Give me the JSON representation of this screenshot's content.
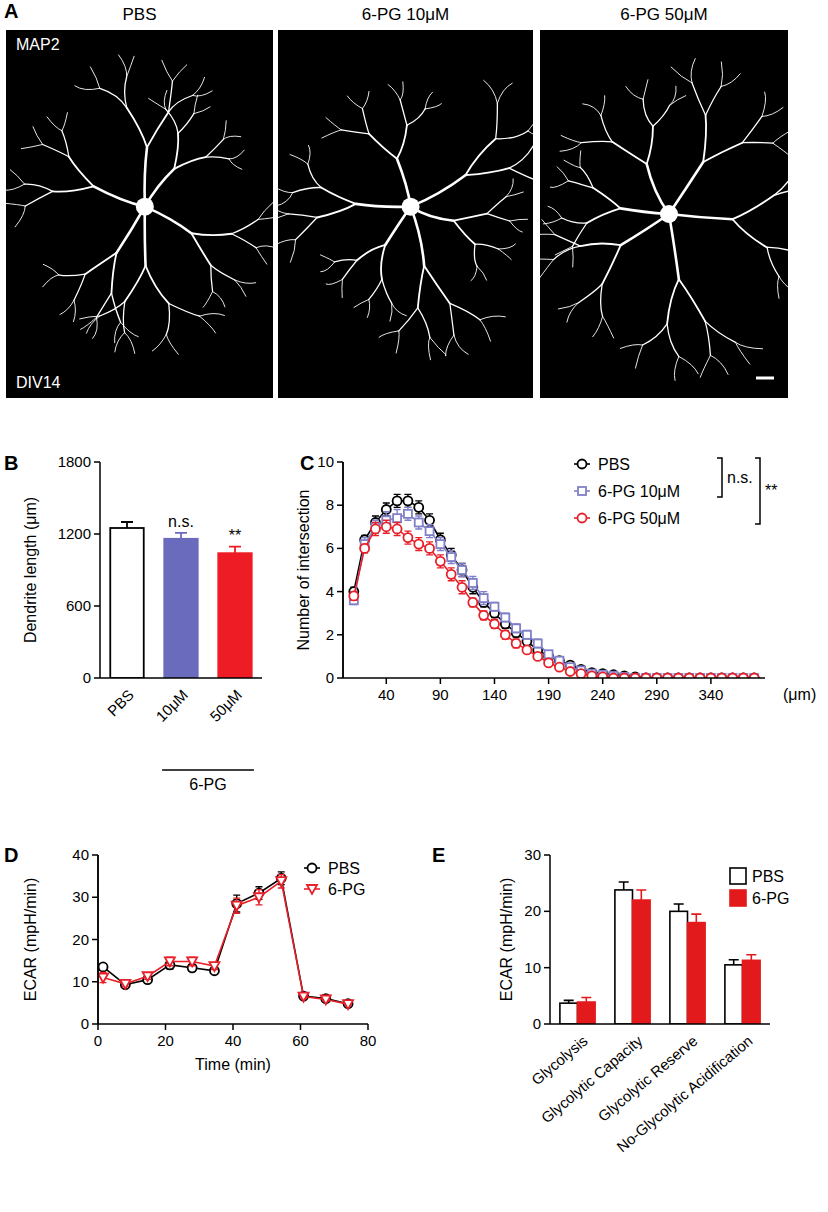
{
  "images": {
    "panel": "A",
    "titles": [
      "PBS",
      "6-PG 10μM",
      "6-PG 50μM"
    ],
    "stain": "MAP2",
    "day": "DIV14"
  },
  "chart_data": [
    {
      "type": "bar",
      "panel": "B",
      "y_label": "Dendrite length (μm)",
      "categories": [
        "PBS",
        "10μM",
        "50μM"
      ],
      "values": [
        1250,
        1160,
        1040
      ],
      "errors": [
        50,
        50,
        55
      ],
      "colors": [
        "#ffffff",
        "#6b6bbd",
        "#ee1c25"
      ],
      "ylim": [
        0,
        1800
      ],
      "yticks": [
        0,
        600,
        1200,
        1800
      ],
      "annotations": [
        {
          "text": "n.s.",
          "x": "10μM"
        },
        {
          "text": "**",
          "x": "50μM"
        },
        {
          "text": "6-PG",
          "categories": [
            "10μM",
            "50μM"
          ]
        }
      ]
    },
    {
      "type": "line",
      "panel": "C",
      "y_label": "Number of intersection",
      "x_label": "(μm)",
      "x": [
        10,
        20,
        30,
        40,
        50,
        60,
        70,
        80,
        90,
        100,
        110,
        120,
        130,
        140,
        150,
        160,
        170,
        180,
        190,
        200,
        210,
        220,
        230,
        240,
        250,
        260,
        270,
        280,
        290,
        300,
        310,
        320,
        330,
        340,
        350,
        360,
        370,
        380
      ],
      "xlim": [
        0,
        390
      ],
      "xticks": [
        40,
        90,
        140,
        190,
        240,
        290,
        340
      ],
      "ylim": [
        0,
        10
      ],
      "yticks": [
        0,
        2,
        4,
        6,
        8,
        10
      ],
      "legend": "upper-right",
      "series": [
        {
          "name": "PBS",
          "color": "#000000",
          "marker": "circle",
          "values": [
            4.0,
            6.4,
            7.2,
            7.8,
            8.2,
            8.2,
            7.9,
            7.3,
            6.4,
            5.7,
            5.0,
            4.2,
            3.5,
            3.0,
            2.5,
            2.1,
            1.7,
            1.3,
            1.0,
            0.8,
            0.6,
            0.4,
            0.25,
            0.2,
            0.15,
            0.1,
            0.05,
            0,
            0,
            0,
            0,
            0,
            0,
            0,
            0,
            0,
            0,
            0
          ],
          "errors": [
            0.2,
            0.2,
            0.3,
            0.3,
            0.3,
            0.3,
            0.3,
            0.3,
            0.3,
            0.3,
            0.3,
            0.3,
            0.2,
            0.2,
            0.2,
            0.2,
            0.2,
            0.2,
            0.1,
            0.1,
            0.1,
            0.1,
            0.1,
            0.1,
            0.05,
            0.05,
            0.05,
            0,
            0,
            0,
            0,
            0,
            0,
            0,
            0,
            0,
            0,
            0
          ]
        },
        {
          "name": "6-PG 10μM",
          "color": "#8080c8",
          "marker": "square",
          "values": [
            3.6,
            6.2,
            7.0,
            7.3,
            7.4,
            7.6,
            7.2,
            6.8,
            6.2,
            5.6,
            5.0,
            4.4,
            3.7,
            3.3,
            2.8,
            2.3,
            2.0,
            1.6,
            1.1,
            0.8,
            0.5,
            0.35,
            0.2,
            0.15,
            0.1,
            0.05,
            0,
            0,
            0,
            0,
            0,
            0,
            0,
            0,
            0,
            0,
            0,
            0
          ],
          "errors": [
            0.2,
            0.3,
            0.3,
            0.4,
            0.4,
            0.3,
            0.3,
            0.3,
            0.3,
            0.3,
            0.3,
            0.3,
            0.3,
            0.2,
            0.2,
            0.2,
            0.2,
            0.2,
            0.1,
            0.1,
            0.1,
            0.1,
            0.05,
            0.05,
            0.05,
            0.05,
            0,
            0,
            0,
            0,
            0,
            0,
            0,
            0,
            0,
            0,
            0,
            0
          ]
        },
        {
          "name": "6-PG 50μM",
          "color": "#e8202a",
          "marker": "circle",
          "values": [
            3.8,
            6.0,
            6.9,
            7.0,
            6.9,
            6.5,
            6.2,
            6.0,
            5.4,
            4.8,
            4.2,
            3.5,
            2.9,
            2.5,
            2.0,
            1.6,
            1.3,
            1.0,
            0.7,
            0.5,
            0.3,
            0.2,
            0.1,
            0.05,
            0,
            0,
            0,
            0,
            0,
            0,
            0,
            0,
            0,
            0,
            0,
            0,
            0,
            0
          ],
          "errors": [
            0.2,
            0.2,
            0.3,
            0.3,
            0.3,
            0.3,
            0.3,
            0.3,
            0.3,
            0.3,
            0.3,
            0.2,
            0.2,
            0.2,
            0.2,
            0.2,
            0.1,
            0.1,
            0.1,
            0.1,
            0.1,
            0.05,
            0.05,
            0.05,
            0,
            0,
            0,
            0,
            0,
            0,
            0,
            0,
            0,
            0,
            0,
            0,
            0,
            0
          ]
        }
      ],
      "annotations": [
        {
          "text": "n.s.",
          "between": [
            "PBS",
            "6-PG 10μM"
          ]
        },
        {
          "text": "**",
          "between": [
            "PBS",
            "6-PG 50μM"
          ]
        }
      ]
    },
    {
      "type": "line",
      "panel": "D",
      "x_label": "Time (min)",
      "y_label": "ECAR (mpH/min)",
      "x": [
        1.5,
        8.1,
        14.7,
        21.3,
        27.9,
        34.5,
        41.1,
        47.7,
        54.3,
        60.9,
        67.5,
        74.1
      ],
      "xlim": [
        0,
        80
      ],
      "xticks": [
        0,
        20,
        40,
        60,
        80
      ],
      "ylim": [
        0,
        40
      ],
      "yticks": [
        0,
        10,
        20,
        30,
        40
      ],
      "legend": "upper-right",
      "series": [
        {
          "name": "PBS",
          "color": "#000000",
          "marker": "circle",
          "values": [
            13.5,
            9.3,
            10.5,
            14.0,
            13.3,
            12.6,
            28.5,
            31.0,
            34.5,
            6.6,
            6.0,
            4.8
          ],
          "errors": [
            0.8,
            0.6,
            0.8,
            1.0,
            0.8,
            0.7,
            2.0,
            1.5,
            1.5,
            0.5,
            0.4,
            0.4
          ]
        },
        {
          "name": "6-PG",
          "color": "#e8202a",
          "marker": "triangle-down",
          "values": [
            11.0,
            9.5,
            11.3,
            14.8,
            14.8,
            13.7,
            28.0,
            30.0,
            33.8,
            6.5,
            5.8,
            4.7
          ],
          "errors": [
            1.2,
            0.6,
            0.7,
            1.0,
            1.0,
            0.8,
            1.8,
            1.8,
            1.6,
            0.5,
            0.4,
            0.4
          ]
        }
      ]
    },
    {
      "type": "bar",
      "panel": "E",
      "y_label": "ECAR (mpH/min)",
      "categories": [
        "Glycolysis",
        "Glycolytic Capacity",
        "Glycolytic Reserve",
        "No-Glycolytic Acidification"
      ],
      "ylim": [
        0,
        30
      ],
      "yticks": [
        0,
        10,
        20,
        30
      ],
      "legend": "upper-right",
      "series": [
        {
          "name": "PBS",
          "color": "#ffffff",
          "values": [
            3.7,
            23.8,
            20.0,
            10.5
          ],
          "errors": [
            0.5,
            1.4,
            1.3,
            0.9
          ]
        },
        {
          "name": "6-PG",
          "color": "#e31a1c",
          "values": [
            3.9,
            22.0,
            18.0,
            11.3
          ],
          "errors": [
            0.8,
            1.8,
            1.5,
            1.0
          ]
        }
      ]
    }
  ]
}
